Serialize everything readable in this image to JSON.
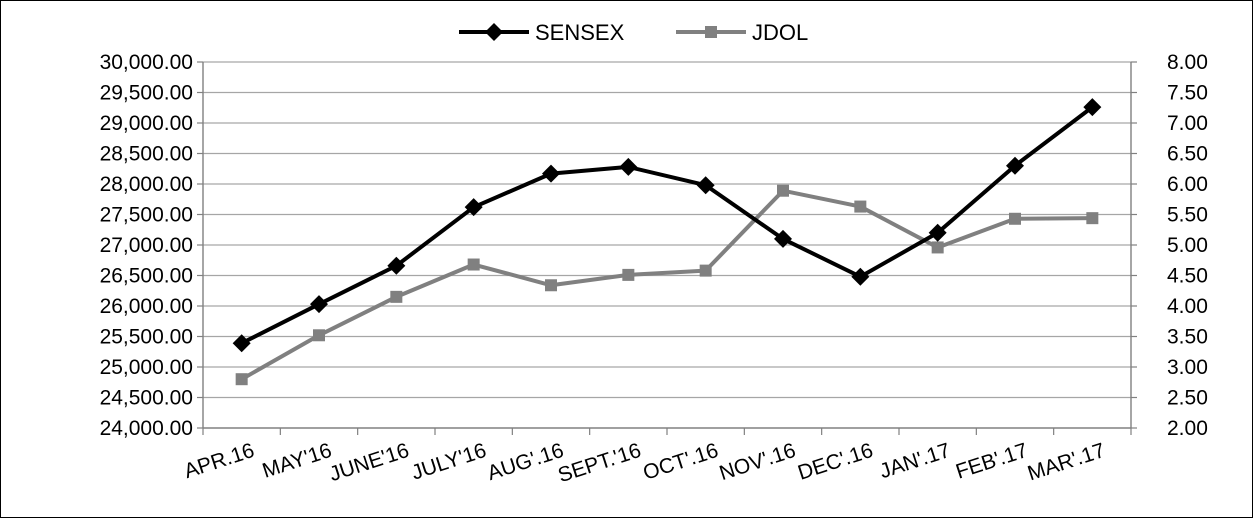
{
  "chart_data": {
    "type": "line",
    "categories": [
      "APR.16",
      "MAY'16",
      "JUNE'16",
      "JULY'16",
      "AUG'.16",
      "SEPT.'16",
      "OCT'.16",
      "NOV'.16",
      "DEC'.16",
      "JAN'.17",
      "FEB'.17",
      "MAR'.17"
    ],
    "series": [
      {
        "name": "SENSEX",
        "axis": "left",
        "color": "#000000",
        "marker": "diamond",
        "values": [
          25390,
          26030,
          26660,
          27620,
          28170,
          28280,
          27980,
          27100,
          26480,
          27200,
          28300,
          29260
        ]
      },
      {
        "name": "JDOL",
        "axis": "right",
        "color": "#808080",
        "marker": "square",
        "values": [
          2.8,
          3.52,
          4.15,
          4.68,
          4.34,
          4.51,
          4.58,
          5.89,
          5.63,
          4.96,
          5.43,
          5.44
        ]
      }
    ],
    "y_left": {
      "ylim": [
        24000,
        30000
      ],
      "ticks": [
        "24,000.00",
        "24,500.00",
        "25,000.00",
        "25,500.00",
        "26,000.00",
        "26,500.00",
        "27,000.00",
        "27,500.00",
        "28,000.00",
        "28,500.00",
        "29,000.00",
        "29,500.00",
        "30,000.00"
      ]
    },
    "y_right": {
      "ylim": [
        2.0,
        8.0
      ],
      "ticks": [
        "2.00",
        "2.50",
        "3.00",
        "3.50",
        "4.00",
        "4.50",
        "5.00",
        "5.50",
        "6.00",
        "6.50",
        "7.00",
        "7.50",
        "8.00"
      ]
    },
    "grid": true,
    "legend": "top-center",
    "title": "",
    "xlabel": "",
    "ylabel": ""
  }
}
